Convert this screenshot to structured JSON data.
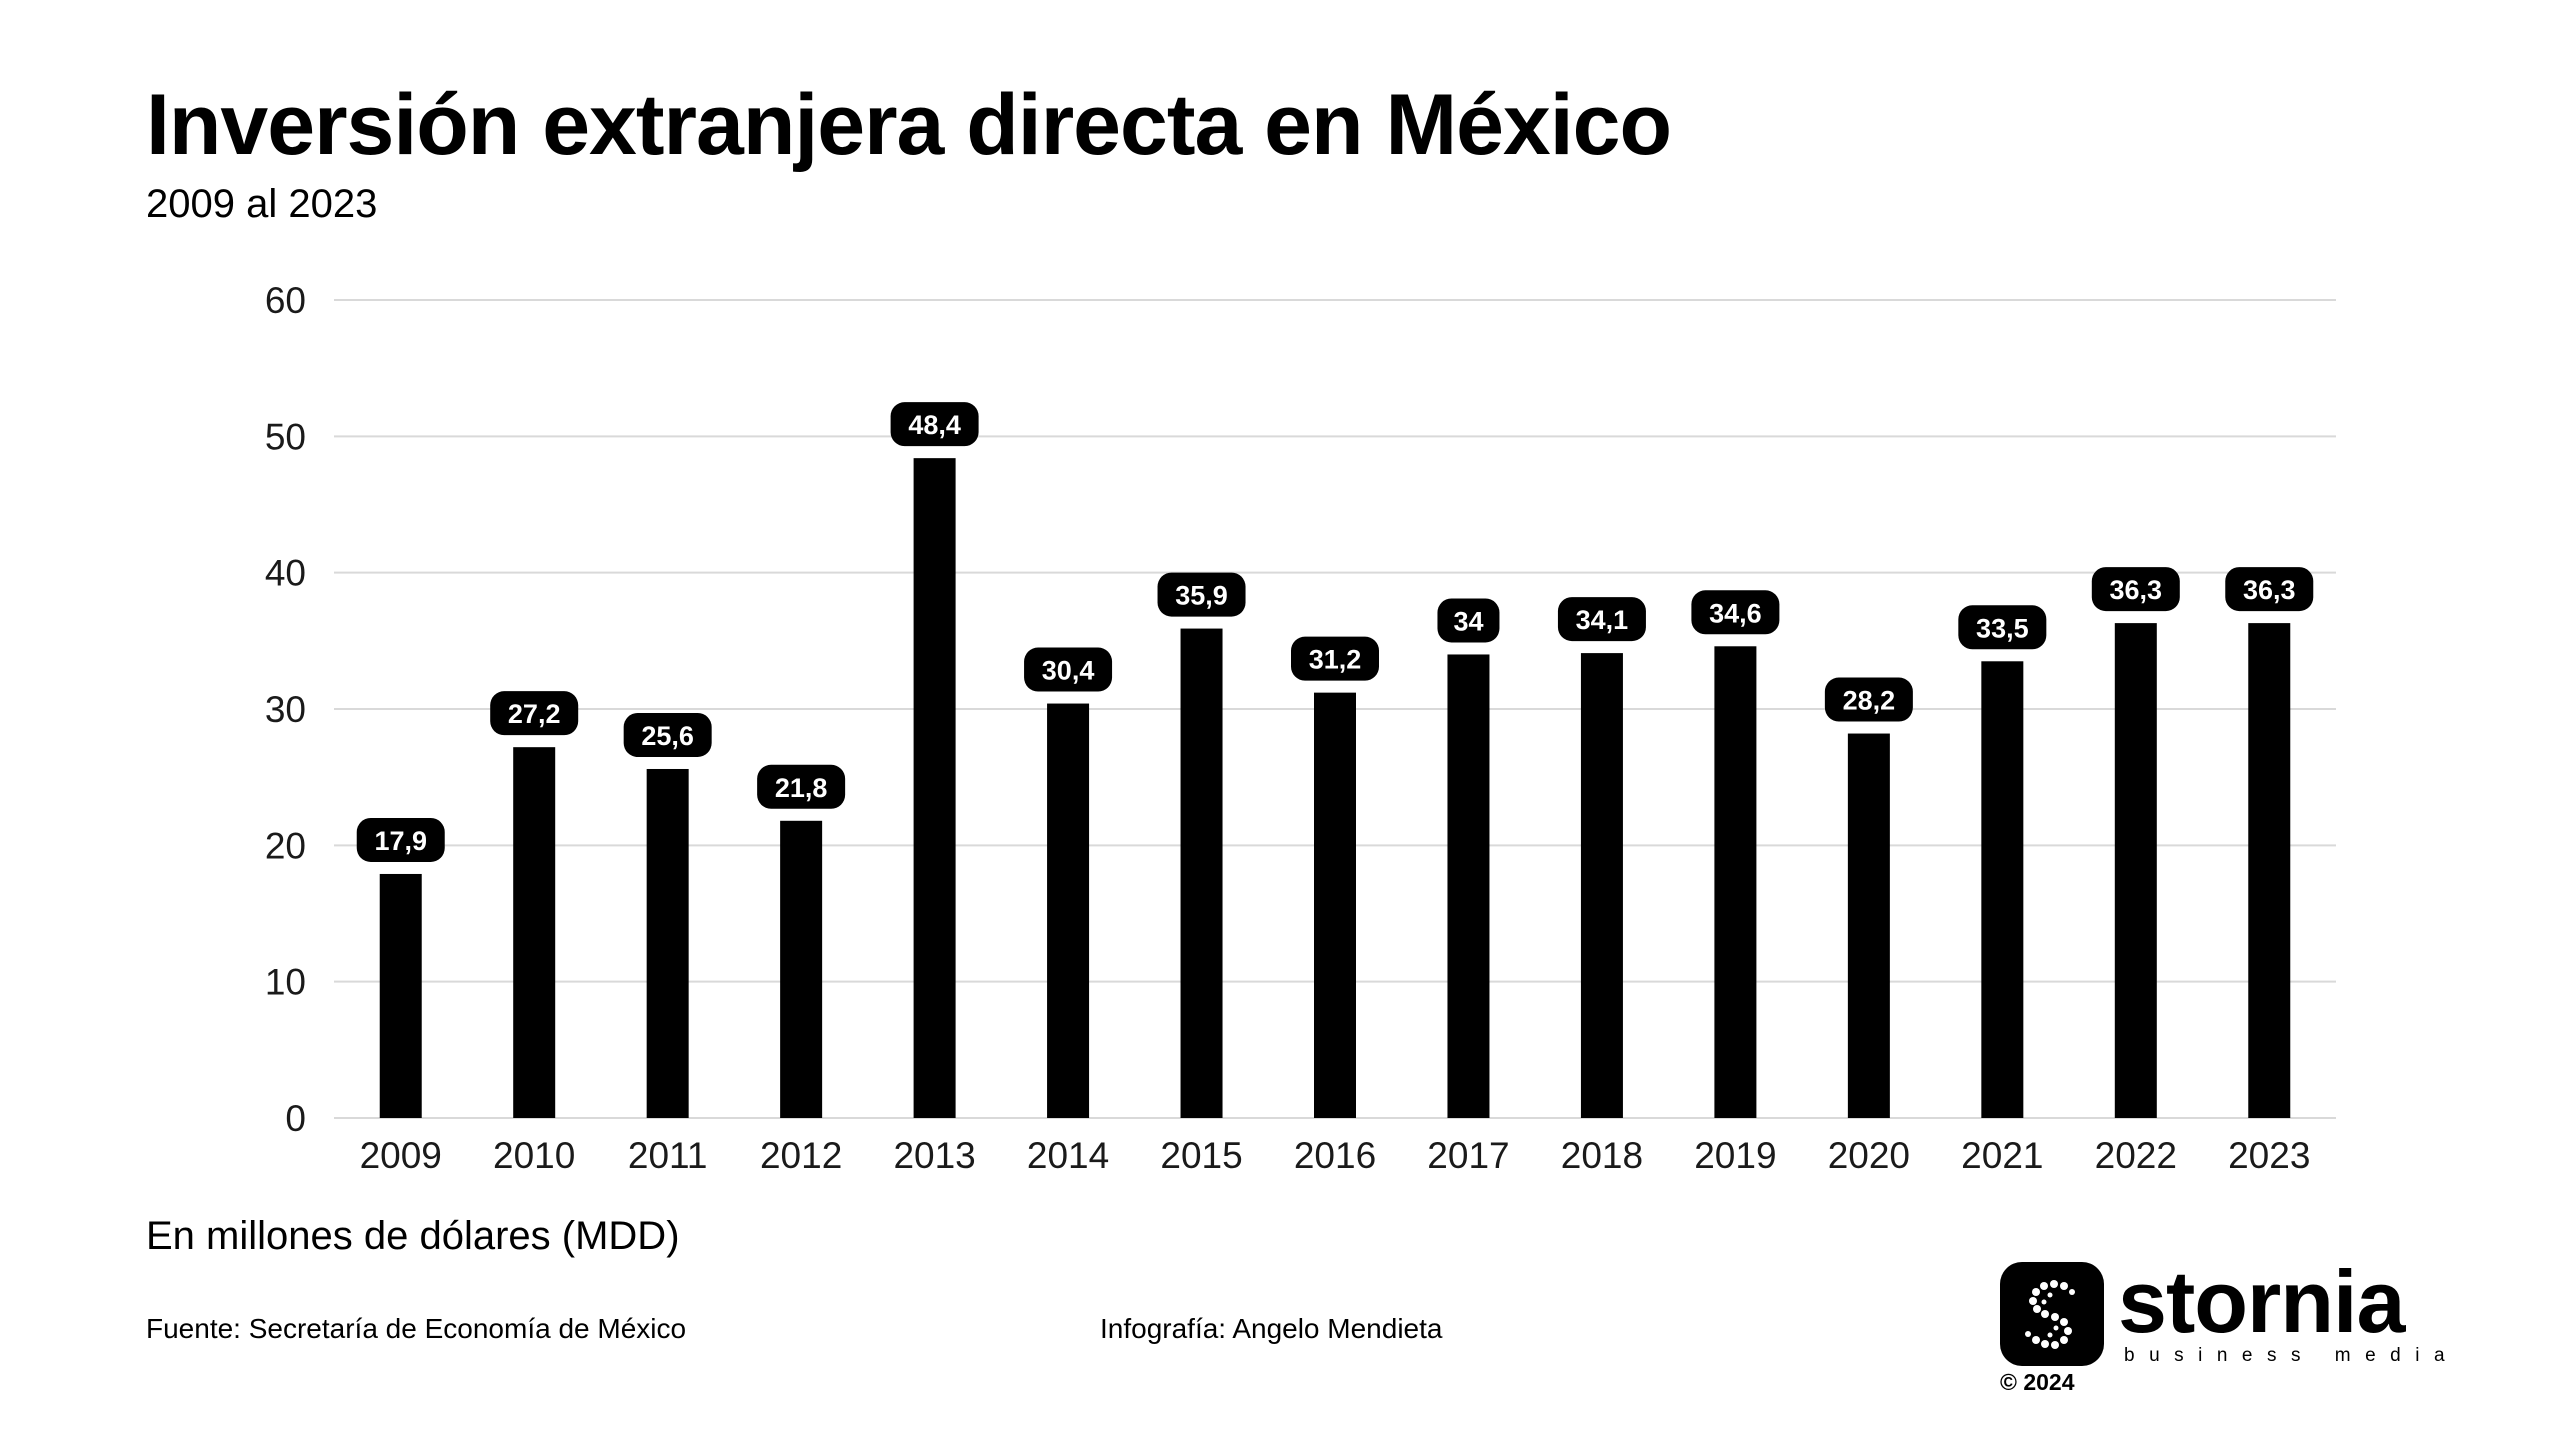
{
  "header": {
    "title": "Inversión extranjera directa en México",
    "subtitle": "2009 al 2023"
  },
  "footer": {
    "units": "En millones de dólares (MDD)",
    "source": "Fuente: Secretaría de Economía de México",
    "credit": "Infografía: Angelo Mendieta"
  },
  "brand": {
    "name": "stornia",
    "tagline": "business media",
    "copyright": "© 2024",
    "icon": "stornia-s-logo-icon"
  },
  "colors": {
    "bar": "#000000",
    "gridline": "#d9d9d9",
    "label_bg": "#000000",
    "label_text": "#ffffff"
  },
  "chart_data": {
    "type": "bar",
    "categories": [
      "2009",
      "2010",
      "2011",
      "2012",
      "2013",
      "2014",
      "2015",
      "2016",
      "2017",
      "2018",
      "2019",
      "2020",
      "2021",
      "2022",
      "2023"
    ],
    "values": [
      17.9,
      27.2,
      25.6,
      21.8,
      48.4,
      30.4,
      35.9,
      31.2,
      34,
      34.1,
      34.6,
      28.2,
      33.5,
      36.3,
      36.3
    ],
    "value_labels": [
      "17,9",
      "27,2",
      "25,6",
      "21,8",
      "48,4",
      "30,4",
      "35,9",
      "31,2",
      "34",
      "34,1",
      "34,6",
      "28,2",
      "33,5",
      "36,3",
      "36,3"
    ],
    "title": "Inversión extranjera directa en México",
    "subtitle": "2009 al 2023",
    "xlabel": "",
    "ylabel": "",
    "ylim": [
      0,
      60
    ],
    "yticks": [
      0,
      10,
      20,
      30,
      40,
      50,
      60
    ],
    "grid": true,
    "legend": "none"
  }
}
